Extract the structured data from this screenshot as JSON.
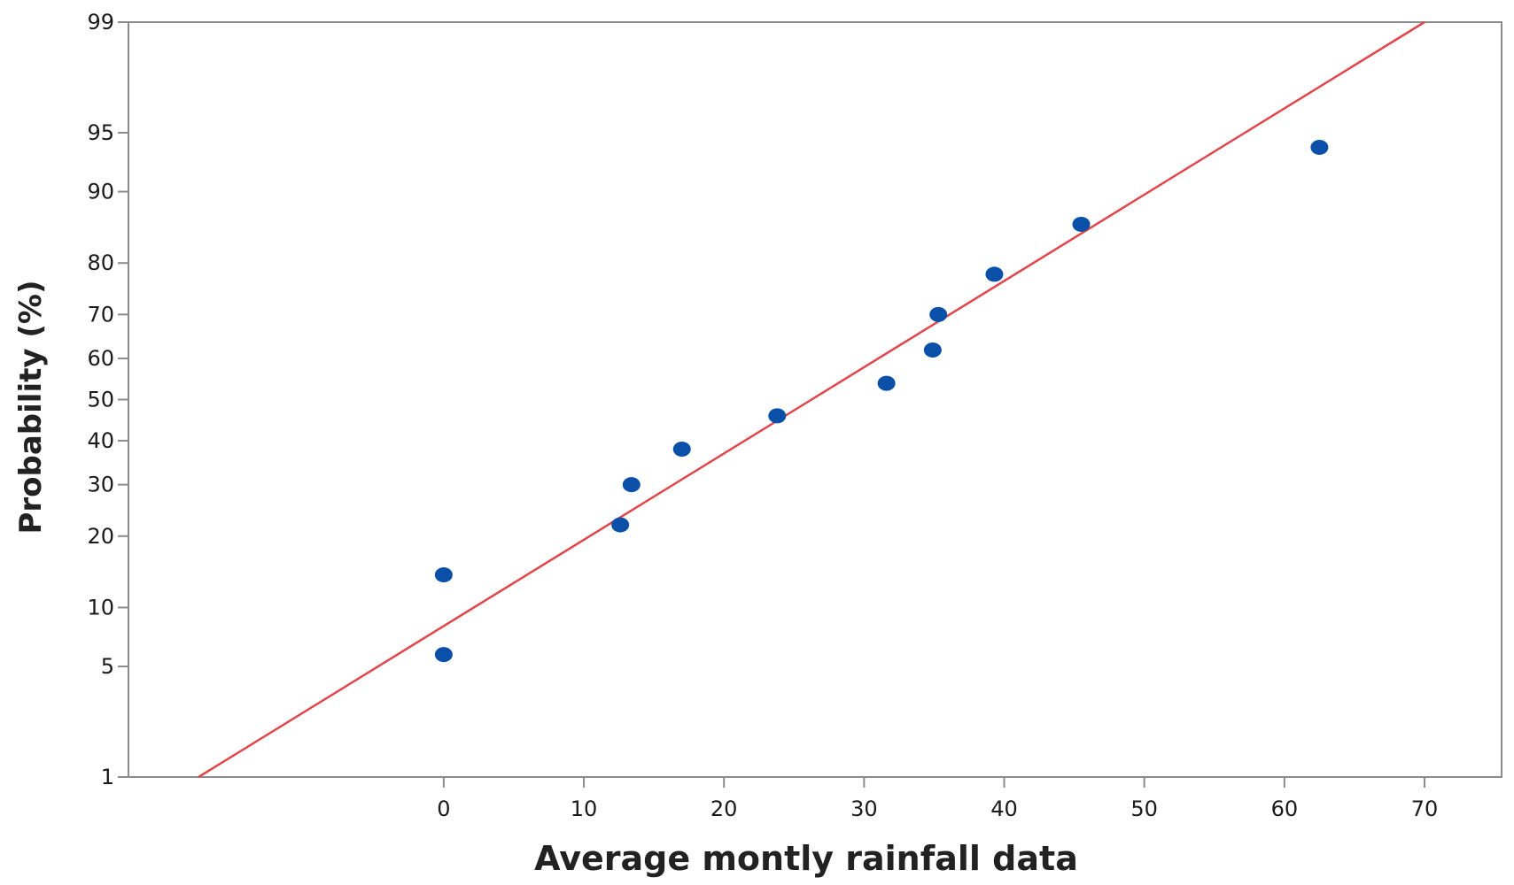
{
  "chart_data": {
    "type": "scatter",
    "title": "",
    "xlabel": "Average montly rainfall data",
    "ylabel": "Probability (%)",
    "xlim": [
      -22.5,
      75.5
    ],
    "ylim": [
      1,
      99
    ],
    "y_scale": "normal-probability",
    "grid": false,
    "x_ticks": [
      0,
      10,
      20,
      30,
      40,
      50,
      60,
      70
    ],
    "y_ticks": [
      1,
      5,
      10,
      20,
      30,
      40,
      50,
      60,
      70,
      80,
      90,
      95,
      99
    ],
    "points_series": {
      "values": [
        {
          "x": 0,
          "y": 5.8
        },
        {
          "x": 0,
          "y": 14
        },
        {
          "x": 12.6,
          "y": 22
        },
        {
          "x": 13.4,
          "y": 30
        },
        {
          "x": 17,
          "y": 38
        },
        {
          "x": 23.8,
          "y": 46
        },
        {
          "x": 31.6,
          "y": 54
        },
        {
          "x": 34.9,
          "y": 62
        },
        {
          "x": 35.3,
          "y": 70
        },
        {
          "x": 39.3,
          "y": 78
        },
        {
          "x": 45.5,
          "y": 86
        },
        {
          "x": 62.5,
          "y": 94
        }
      ],
      "color": "#0a4fa8"
    },
    "fit_line": {
      "start": {
        "x": -17.5,
        "y": 1
      },
      "end": {
        "x": 70,
        "y": 99
      },
      "color": "#e0474c"
    }
  }
}
